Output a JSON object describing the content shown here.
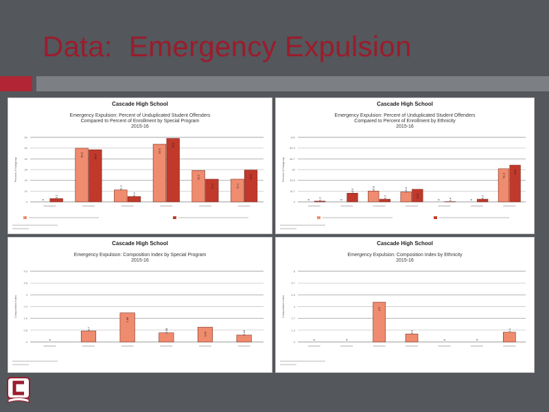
{
  "slide": {
    "title": "Data:  Emergency Expulsion",
    "accent_color": "#9b1c2c"
  },
  "chart_data": [
    {
      "type": "bar",
      "school": "Cascade High School",
      "title_lines": [
        "Emergency Expulsion: Percent of Unduplicated Student Offenders",
        "Compared to Percent of Enrollment by Special Program",
        "2015-16"
      ],
      "categories": [
        "",
        "",
        "",
        "",
        "",
        ""
      ],
      "series": [
        {
          "name": "",
          "color": "#ef8b6e",
          "values": [
            0.0,
            49.9,
            11.1,
            53.6,
            29.2,
            21.1
          ]
        },
        {
          "name": "",
          "color": "#c0392b",
          "values": [
            3.1,
            48.5,
            5.0,
            59.0,
            21.1,
            29.6
          ]
        }
      ],
      "value_labels": [
        [
          "0",
          "49.9",
          "11.1",
          "53.6",
          "29.2",
          "21.1"
        ],
        [
          "3.1",
          "48.5",
          "5.0",
          "59.0",
          "21.1",
          "29.6"
        ]
      ],
      "ylim": [
        0,
        60
      ],
      "ylabel": "Percent of Subgroup"
    },
    {
      "type": "bar",
      "school": "Cascade High School",
      "title_lines": [
        "Emergency Expulsion: Percent of Unduplicated Student Offenders",
        "Compared to Percent of Enrollment by Ethnicity",
        "2015-16"
      ],
      "categories": [
        "",
        "",
        "",
        "",
        "",
        "",
        ""
      ],
      "series": [
        {
          "name": "",
          "color": "#ef8b6e",
          "values": [
            0.0,
            0.0,
            16.8,
            15.4,
            0.0,
            0.0,
            51.3
          ]
        },
        {
          "name": "",
          "color": "#c0392b",
          "values": [
            1.2,
            13.5,
            4.2,
            19.5,
            0.4,
            4.2,
            56.9
          ]
        }
      ],
      "value_labels": [
        [
          "0",
          "0",
          "16.8",
          "15.4",
          "0",
          "0",
          "51.3"
        ],
        [
          "1.2",
          "13.5",
          "4.2",
          "19.5",
          "0.4",
          "4.2",
          "56.9"
        ]
      ],
      "ylim": [
        0,
        100
      ],
      "ylabel": "Percent of Subgroup"
    },
    {
      "type": "bar",
      "school": "Cascade High School",
      "title_lines": [
        "Emergency Expulsion: Composition Index by Special Program",
        "2015-16"
      ],
      "categories": [
        "",
        "",
        "",
        "",
        "",
        ""
      ],
      "series": [
        {
          "name": "",
          "color": "#ef8b6e",
          "values": [
            0.0,
            0.7,
            1.85,
            0.58,
            0.94,
            0.44
          ]
        }
      ],
      "value_labels": [
        [
          "0",
          "0.7",
          "1.85",
          "0.58",
          "0.94",
          "0.44"
        ]
      ],
      "ylim": [
        0,
        4.5
      ],
      "ylabel": "Composition Index"
    },
    {
      "type": "bar",
      "school": "Cascade High School",
      "title_lines": [
        "Emergency Expulsion: Composition Index by Ethnicity",
        "2015-16"
      ],
      "categories": [
        "",
        "",
        "",
        "",
        "",
        "",
        ""
      ],
      "series": [
        {
          "name": "",
          "color": "#ef8b6e",
          "values": [
            0.0,
            0.0,
            4.5,
            0.9,
            0.0,
            0.0,
            1.1
          ]
        }
      ],
      "value_labels": [
        [
          "0",
          "0",
          "4.5",
          "0.9",
          "0",
          "0",
          "1.1"
        ]
      ],
      "ylim": [
        0,
        8
      ],
      "ylabel": "Composition Index"
    }
  ]
}
